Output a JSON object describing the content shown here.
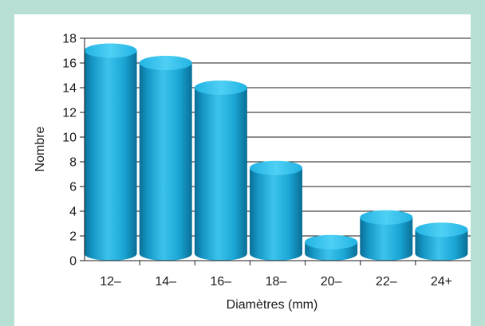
{
  "chart_data": {
    "type": "bar",
    "style": "3d-cylinder",
    "title": "",
    "xlabel": "Diamètres (mm)",
    "ylabel": "Nombre",
    "categories": [
      "12–",
      "14–",
      "16–",
      "18–",
      "20–",
      "22–",
      "24+"
    ],
    "values": [
      17,
      16,
      14,
      7.5,
      1.5,
      3.5,
      2.5
    ],
    "ylim": [
      0,
      18
    ],
    "yticks": [
      0,
      2,
      4,
      6,
      8,
      10,
      12,
      14,
      16,
      18
    ],
    "grid": true,
    "legend": "none",
    "colors": {
      "bar": "#1aa6d6",
      "bar_dark": "#0a6e95",
      "bar_light": "#3cc3ec",
      "frame": "#b7dfd3",
      "grid": "#1a1a1a"
    }
  }
}
